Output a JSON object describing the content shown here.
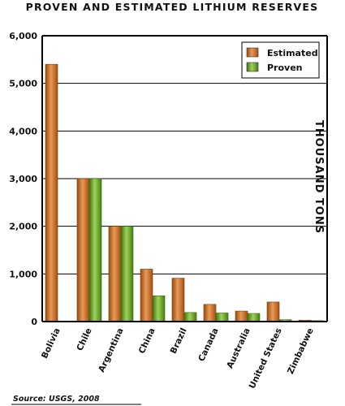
{
  "chart_data": {
    "type": "bar",
    "title": "PROVEN AND ESTIMATED LITHIUM RESERVES",
    "ylabel": "THOUSAND TONS",
    "xlabel": "",
    "source": "Source: USGS, 2008",
    "ylim": [
      0,
      6000
    ],
    "yticks": [
      "0",
      "1,000",
      "2,000",
      "3,000",
      "4,000",
      "5,000",
      "6,000"
    ],
    "ytick_values": [
      0,
      1000,
      2000,
      3000,
      4000,
      5000,
      6000
    ],
    "grid": true,
    "legend_position": "top-right",
    "categories": [
      "Bolivia",
      "Chile",
      "Argentina",
      "China",
      "Brazil",
      "Canada",
      "Australia",
      "United States",
      "Zimbabwe"
    ],
    "series": [
      {
        "name": "Estimated",
        "color": "#c8651b",
        "values": [
          5400,
          3000,
          2000,
          1100,
          910,
          360,
          220,
          410,
          30
        ]
      },
      {
        "name": "Proven",
        "color": "#5f9e1e",
        "values": [
          0,
          3000,
          2000,
          540,
          190,
          180,
          170,
          40,
          20
        ]
      }
    ]
  }
}
